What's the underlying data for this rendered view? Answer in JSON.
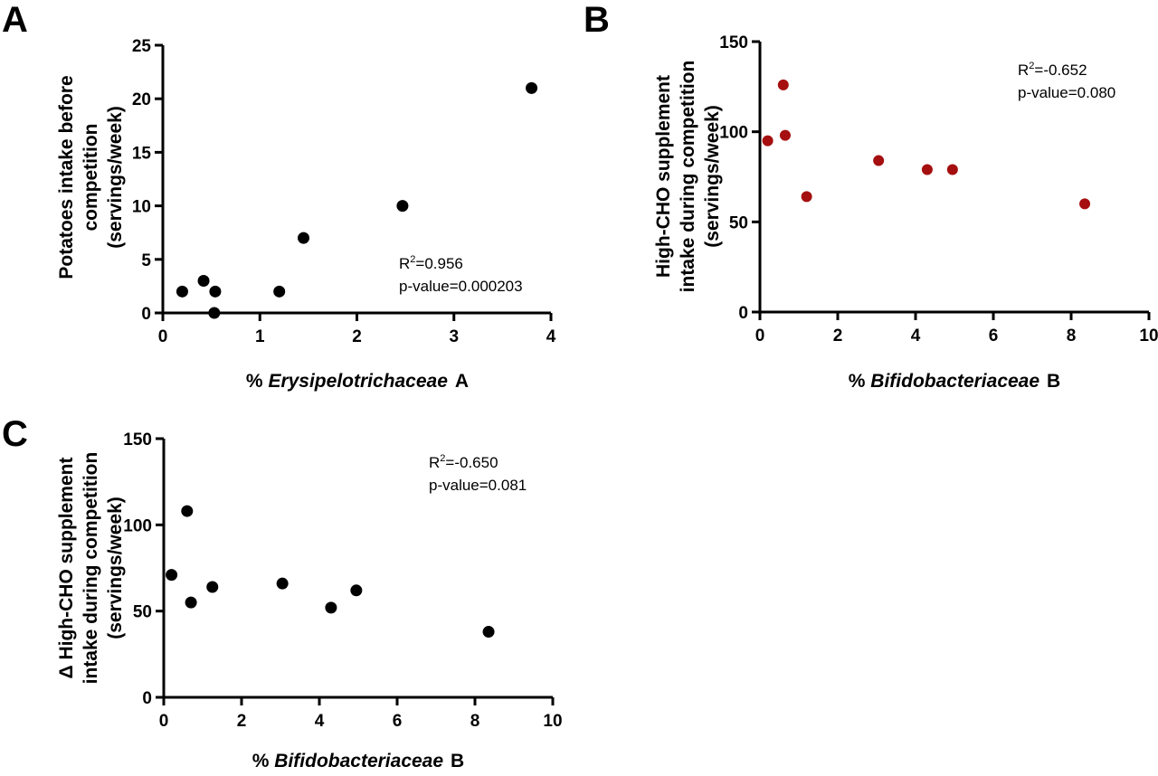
{
  "chart_data": [
    {
      "panel": "A",
      "type": "scatter",
      "xlabel_prefix": "% ",
      "xlabel_taxon": "Erysipelotrichaceae",
      "xlabel_suffix": "A",
      "ylabel_lines": [
        "Potatoes intake before",
        "competition",
        "(servings/week)"
      ],
      "xlim": [
        0,
        4
      ],
      "ylim": [
        0,
        25
      ],
      "xticks": [
        0,
        1,
        2,
        3,
        4
      ],
      "yticks": [
        0,
        5,
        10,
        15,
        20,
        25
      ],
      "point_color": "#000000",
      "r2_prefix": "R",
      "r2_sup": "2",
      "r2_value": "=0.956",
      "p_text": "p-value=0.000203",
      "points": [
        {
          "x": 0.2,
          "y": 2
        },
        {
          "x": 0.42,
          "y": 3
        },
        {
          "x": 0.54,
          "y": 2
        },
        {
          "x": 0.53,
          "y": 0
        },
        {
          "x": 1.2,
          "y": 2
        },
        {
          "x": 1.45,
          "y": 7
        },
        {
          "x": 2.47,
          "y": 10
        },
        {
          "x": 3.8,
          "y": 21
        }
      ]
    },
    {
      "panel": "B",
      "type": "scatter",
      "xlabel_prefix": "% ",
      "xlabel_taxon": "Bifidobacteriaceae",
      "xlabel_suffix": "B",
      "ylabel_lines": [
        "High-CHO supplement",
        "intake during competition",
        "(servings/week)"
      ],
      "xlim": [
        0,
        10
      ],
      "ylim": [
        0,
        150
      ],
      "xticks": [
        0,
        2,
        4,
        6,
        8,
        10
      ],
      "yticks": [
        0,
        50,
        100,
        150
      ],
      "point_color": "#a50f0f",
      "r2_prefix": "R",
      "r2_sup": "2",
      "r2_value": "=-0.652",
      "p_text": "p-value=0.080",
      "points": [
        {
          "x": 0.2,
          "y": 95
        },
        {
          "x": 0.6,
          "y": 126
        },
        {
          "x": 0.65,
          "y": 98
        },
        {
          "x": 1.2,
          "y": 64
        },
        {
          "x": 3.05,
          "y": 84
        },
        {
          "x": 4.3,
          "y": 79
        },
        {
          "x": 4.95,
          "y": 79
        },
        {
          "x": 8.35,
          "y": 60
        }
      ]
    },
    {
      "panel": "C",
      "type": "scatter",
      "xlabel_prefix": "% ",
      "xlabel_taxon": "Bifidobacteriaceae",
      "xlabel_suffix": "B",
      "ylabel_lines": [
        "Δ  High-CHO supplement",
        "intake during competition",
        "(servings/week)"
      ],
      "xlim": [
        0,
        10
      ],
      "ylim": [
        0,
        150
      ],
      "xticks": [
        0,
        2,
        4,
        6,
        8,
        10
      ],
      "yticks": [
        0,
        50,
        100,
        150
      ],
      "point_color": "#000000",
      "r2_prefix": "R",
      "r2_sup": "2",
      "r2_value": "=-0.650",
      "p_text": "p-value=0.081",
      "points": [
        {
          "x": 0.2,
          "y": 71
        },
        {
          "x": 0.6,
          "y": 108
        },
        {
          "x": 0.7,
          "y": 55
        },
        {
          "x": 1.25,
          "y": 64
        },
        {
          "x": 3.05,
          "y": 66
        },
        {
          "x": 4.3,
          "y": 52
        },
        {
          "x": 4.95,
          "y": 62
        },
        {
          "x": 8.35,
          "y": 38
        }
      ]
    }
  ]
}
